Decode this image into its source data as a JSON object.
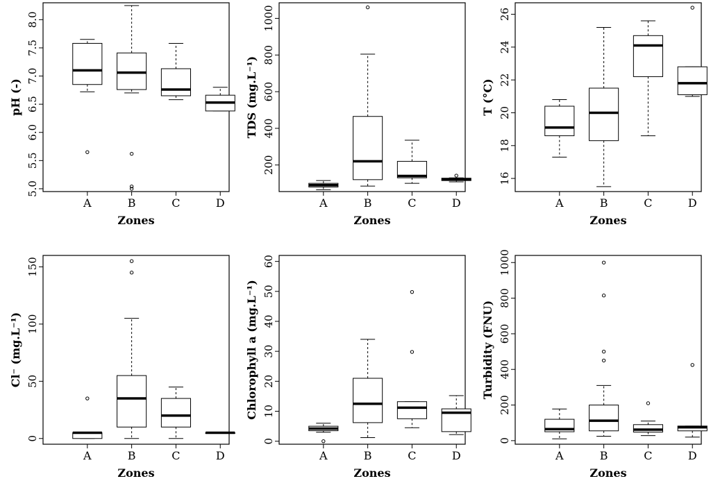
{
  "figure_caption": "",
  "chart_data": [
    {
      "type": "boxplot",
      "ylabel": "pH (-)",
      "xlabel": "Zones",
      "categories": [
        "A",
        "B",
        "C",
        "D"
      ],
      "ylim": [
        4.95,
        8.3
      ],
      "yticks": [
        5.0,
        5.5,
        6.0,
        6.5,
        7.0,
        7.5,
        8.0
      ],
      "ytick_labels": [
        "5.0",
        "5.5",
        "6.0",
        "6.5",
        "7.0",
        "7.5",
        "8.0"
      ],
      "boxes": [
        {
          "whisker_low": 6.72,
          "q1": 6.85,
          "median": 7.1,
          "q3": 7.58,
          "whisker_high": 7.65,
          "outliers": [
            5.65
          ]
        },
        {
          "whisker_low": 6.7,
          "q1": 6.76,
          "median": 7.06,
          "q3": 7.41,
          "whisker_high": 8.25,
          "outliers": [
            5.62,
            5.04,
            5.0
          ]
        },
        {
          "whisker_low": 6.58,
          "q1": 6.65,
          "median": 6.76,
          "q3": 7.13,
          "whisker_high": 7.58,
          "outliers": []
        },
        {
          "whisker_low": 6.38,
          "q1": 6.38,
          "median": 6.53,
          "q3": 6.66,
          "whisker_high": 6.8,
          "outliers": []
        }
      ]
    },
    {
      "type": "boxplot",
      "ylabel": "TDS (mg.L⁻¹)",
      "xlabel": "Zones",
      "categories": [
        "A",
        "B",
        "C",
        "D"
      ],
      "ylim": [
        55,
        1085
      ],
      "yticks": [
        200,
        400,
        600,
        800,
        1000
      ],
      "ytick_labels": [
        "200",
        "400",
        "600",
        "800",
        "1000"
      ],
      "boxes": [
        {
          "whisker_low": 65,
          "q1": 80,
          "median": 90,
          "q3": 100,
          "whisker_high": 115,
          "outliers": []
        },
        {
          "whisker_low": 85,
          "q1": 120,
          "median": 220,
          "q3": 465,
          "whisker_high": 805,
          "outliers": [
            1060
          ]
        },
        {
          "whisker_low": 100,
          "q1": 130,
          "median": 140,
          "q3": 220,
          "whisker_high": 335,
          "outliers": []
        },
        {
          "whisker_low": 108,
          "q1": 115,
          "median": 122,
          "q3": 128,
          "whisker_high": 130,
          "outliers": [
            142
          ]
        }
      ]
    },
    {
      "type": "boxplot",
      "ylabel": "T (°C)",
      "xlabel": "Zones",
      "categories": [
        "A",
        "B",
        "C",
        "D"
      ],
      "ylim": [
        15.2,
        26.7
      ],
      "yticks": [
        16,
        18,
        20,
        22,
        24,
        26
      ],
      "ytick_labels": [
        "16",
        "18",
        "20",
        "22",
        "24",
        "26"
      ],
      "boxes": [
        {
          "whisker_low": 17.3,
          "q1": 18.6,
          "median": 19.1,
          "q3": 20.4,
          "whisker_high": 20.8,
          "outliers": []
        },
        {
          "whisker_low": 15.5,
          "q1": 18.3,
          "median": 20.0,
          "q3": 21.5,
          "whisker_high": 25.2,
          "outliers": []
        },
        {
          "whisker_low": 18.6,
          "q1": 22.2,
          "median": 24.1,
          "q3": 24.7,
          "whisker_high": 25.6,
          "outliers": []
        },
        {
          "whisker_low": 21.0,
          "q1": 21.1,
          "median": 21.8,
          "q3": 22.8,
          "whisker_high": 22.8,
          "outliers": [
            26.4
          ]
        }
      ]
    },
    {
      "type": "boxplot",
      "ylabel": "Cl⁻ (mg.L⁻¹)",
      "xlabel": "Zones",
      "categories": [
        "A",
        "B",
        "C",
        "D"
      ],
      "ylim": [
        -5,
        160
      ],
      "yticks": [
        0,
        50,
        100,
        150
      ],
      "ytick_labels": [
        "0",
        "50",
        "100",
        "150"
      ],
      "boxes": [
        {
          "whisker_low": 0,
          "q1": 0,
          "median": 5,
          "q3": 5,
          "whisker_high": 5,
          "outliers": [
            35
          ]
        },
        {
          "whisker_low": 0,
          "q1": 10,
          "median": 35,
          "q3": 55,
          "whisker_high": 105,
          "outliers": [
            145,
            155
          ]
        },
        {
          "whisker_low": 0,
          "q1": 10,
          "median": 20,
          "q3": 35,
          "whisker_high": 45,
          "outliers": []
        },
        {
          "whisker_low": 5,
          "q1": 5,
          "median": 5,
          "q3": 5,
          "whisker_high": 5,
          "outliers": []
        }
      ]
    },
    {
      "type": "boxplot",
      "ylabel": "Chlorophyll a (mg.L⁻¹)",
      "xlabel": "Zones",
      "categories": [
        "A",
        "B",
        "C",
        "D"
      ],
      "ylim": [
        -1,
        62
      ],
      "yticks": [
        0,
        10,
        20,
        30,
        40,
        50,
        60
      ],
      "ytick_labels": [
        "0",
        "10",
        "20",
        "30",
        "40",
        "50",
        "60"
      ],
      "boxes": [
        {
          "whisker_low": 3,
          "q1": 3.5,
          "median": 4.2,
          "q3": 5,
          "whisker_high": 6,
          "outliers": [
            0
          ]
        },
        {
          "whisker_low": 1.2,
          "q1": 6.2,
          "median": 12.5,
          "q3": 21,
          "whisker_high": 34,
          "outliers": []
        },
        {
          "whisker_low": 4.5,
          "q1": 7.5,
          "median": 11.2,
          "q3": 13.2,
          "whisker_high": 13.2,
          "outliers": [
            29.8,
            49.8
          ]
        },
        {
          "whisker_low": 2.2,
          "q1": 3.2,
          "median": 9.5,
          "q3": 10.8,
          "whisker_high": 15.2,
          "outliers": []
        }
      ]
    },
    {
      "type": "boxplot",
      "ylabel": "Turbidity (FNU)",
      "xlabel": "Zones",
      "categories": [
        "A",
        "B",
        "C",
        "D"
      ],
      "ylim": [
        -20,
        1040
      ],
      "yticks": [
        0,
        200,
        400,
        600,
        800,
        1000
      ],
      "ytick_labels": [
        "0",
        "200",
        "400",
        "600",
        "800",
        "1000"
      ],
      "boxes": [
        {
          "whisker_low": 10,
          "q1": 50,
          "median": 65,
          "q3": 120,
          "whisker_high": 178,
          "outliers": []
        },
        {
          "whisker_low": 25,
          "q1": 55,
          "median": 112,
          "q3": 200,
          "whisker_high": 310,
          "outliers": [
            450,
            500,
            815,
            1000
          ]
        },
        {
          "whisker_low": 28,
          "q1": 48,
          "median": 62,
          "q3": 90,
          "whisker_high": 110,
          "outliers": [
            210
          ]
        },
        {
          "whisker_low": 20,
          "q1": 55,
          "median": 75,
          "q3": 82,
          "whisker_high": 82,
          "outliers": [
            425
          ]
        }
      ]
    }
  ]
}
